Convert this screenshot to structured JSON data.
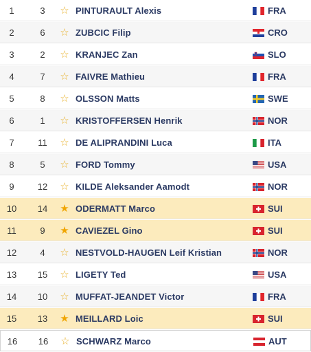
{
  "colors": {
    "row_alt": "#f6f6f6",
    "row_highlight": "#fcebbd",
    "star": "#e8b12a",
    "star_filled": "#f0a500",
    "name_text": "#2b3a63"
  },
  "rows": [
    {
      "rank": "1",
      "bib": "3",
      "star": "☆",
      "name": "PINTURAULT Alexis",
      "flag": "fra-flag-icon",
      "nation": "FRA",
      "highlight": false
    },
    {
      "rank": "2",
      "bib": "6",
      "star": "☆",
      "name": "ZUBCIC Filip",
      "flag": "cro-flag-icon",
      "nation": "CRO",
      "highlight": false
    },
    {
      "rank": "3",
      "bib": "2",
      "star": "☆",
      "name": "KRANJEC Zan",
      "flag": "slo-flag-icon",
      "nation": "SLO",
      "highlight": false
    },
    {
      "rank": "4",
      "bib": "7",
      "star": "☆",
      "name": "FAIVRE Mathieu",
      "flag": "fra-flag-icon",
      "nation": "FRA",
      "highlight": false
    },
    {
      "rank": "5",
      "bib": "8",
      "star": "☆",
      "name": "OLSSON Matts",
      "flag": "swe-flag-icon",
      "nation": "SWE",
      "highlight": false
    },
    {
      "rank": "6",
      "bib": "1",
      "star": "☆",
      "name": "KRISTOFFERSEN Henrik",
      "flag": "nor-flag-icon",
      "nation": "NOR",
      "highlight": false
    },
    {
      "rank": "7",
      "bib": "11",
      "star": "☆",
      "name": "DE ALIPRANDINI Luca",
      "flag": "ita-flag-icon",
      "nation": "ITA",
      "highlight": false
    },
    {
      "rank": "8",
      "bib": "5",
      "star": "☆",
      "name": "FORD Tommy",
      "flag": "usa-flag-icon",
      "nation": "USA",
      "highlight": false
    },
    {
      "rank": "9",
      "bib": "12",
      "star": "☆",
      "name": "KILDE Aleksander Aamodt",
      "flag": "nor-flag-icon",
      "nation": "NOR",
      "highlight": false
    },
    {
      "rank": "10",
      "bib": "14",
      "star": "★",
      "name": "ODERMATT Marco",
      "flag": "sui-flag-icon",
      "nation": "SUI",
      "highlight": true
    },
    {
      "rank": "11",
      "bib": "9",
      "star": "★",
      "name": "CAVIEZEL Gino",
      "flag": "sui-flag-icon",
      "nation": "SUI",
      "highlight": true
    },
    {
      "rank": "12",
      "bib": "4",
      "star": "☆",
      "name": "NESTVOLD-HAUGEN Leif Kristian",
      "flag": "nor-flag-icon",
      "nation": "NOR",
      "highlight": false
    },
    {
      "rank": "13",
      "bib": "15",
      "star": "☆",
      "name": "LIGETY Ted",
      "flag": "usa-flag-icon",
      "nation": "USA",
      "highlight": false
    },
    {
      "rank": "14",
      "bib": "10",
      "star": "☆",
      "name": "MUFFAT-JEANDET Victor",
      "flag": "fra-flag-icon",
      "nation": "FRA",
      "highlight": false
    },
    {
      "rank": "15",
      "bib": "13",
      "star": "★",
      "name": "MEILLARD Loic",
      "flag": "sui-flag-icon",
      "nation": "SUI",
      "highlight": true
    },
    {
      "rank": "16",
      "bib": "16",
      "star": "☆",
      "name": "SCHWARZ Marco",
      "flag": "aut-flag-icon",
      "nation": "AUT",
      "highlight": false
    }
  ]
}
